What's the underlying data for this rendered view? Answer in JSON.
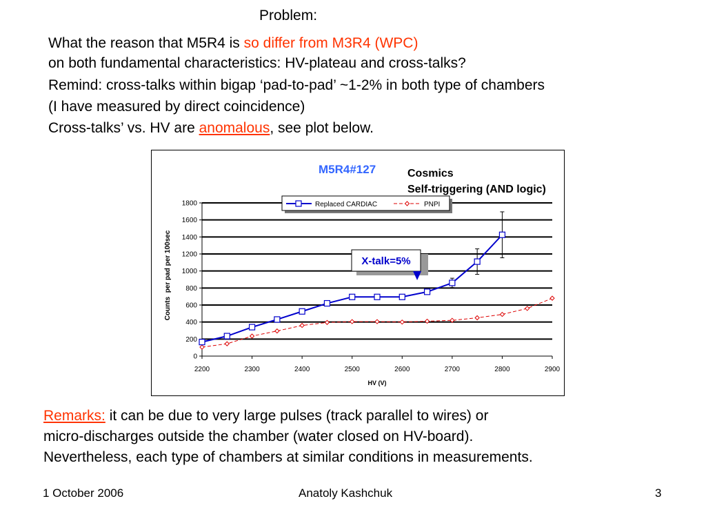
{
  "slide": {
    "problem": "Problem:",
    "line1_a": "What the reason that M5R4 is ",
    "line1_b": "so differ from M3R4 (WPC)",
    "line2": "on both fundamental characteristics: HV-plateau and cross-talks?",
    "line3": "Remind: cross-talks within bigap ‘pad-to-pad’ ~1-2% in both type of chambers",
    "line4": "(I have measured by direct coincidence)",
    "line5_a": "Cross-talks’ vs. HV are ",
    "line5_b": "anomalous",
    "line5_c": ", see plot below.",
    "remarks_label": "Remarks:",
    "remarks_1": " it can be due to very large pulses (track parallel to wires) or",
    "remarks_2": "micro-discharges outside the chamber (water closed on HV-board).",
    "remarks_3": "Nevertheless, each type of chambers at similar conditions in measurements.",
    "footer_date": "1 October 2006",
    "footer_author": "Anatoly Kashchuk",
    "footer_page": "3",
    "colors": {
      "red_text": "#ff3300",
      "title_blue": "#3366ff",
      "series_blue": "#0000cc",
      "series_red": "#dd0000"
    }
  },
  "chart_data": {
    "type": "line",
    "title": "M5R4#127",
    "subtitle_lines": [
      "Cosmics",
      "Self-triggering (AND logic)"
    ],
    "xlabel": "HV (V)",
    "ylabel": "Counts  per pad per 100sec",
    "xlim": [
      2200,
      2900
    ],
    "ylim": [
      0,
      1800
    ],
    "x_ticks": [
      2200,
      2300,
      2400,
      2500,
      2600,
      2700,
      2800,
      2900
    ],
    "y_ticks": [
      0,
      200,
      400,
      600,
      800,
      1000,
      1200,
      1400,
      1600,
      1800
    ],
    "grid": "horizontal",
    "legend_position": "top",
    "annotation": "X-talk=5%",
    "annotation_x": 2630,
    "series": [
      {
        "name": "Replaced CARDIAC",
        "style": "solid-square",
        "x": [
          2200,
          2250,
          2300,
          2350,
          2400,
          2450,
          2500,
          2550,
          2600,
          2650,
          2700,
          2750,
          2800
        ],
        "y": [
          165,
          235,
          340,
          430,
          525,
          620,
          695,
          695,
          695,
          755,
          860,
          1110,
          1425
        ],
        "err": [
          0,
          0,
          0,
          0,
          0,
          0,
          0,
          0,
          0,
          30,
          55,
          150,
          270
        ]
      },
      {
        "name": "PNPI",
        "style": "dashed-diamond",
        "x": [
          2200,
          2250,
          2300,
          2350,
          2400,
          2450,
          2500,
          2550,
          2600,
          2650,
          2700,
          2750,
          2800,
          2850,
          2900
        ],
        "y": [
          105,
          145,
          235,
          295,
          360,
          395,
          405,
          405,
          400,
          410,
          420,
          450,
          490,
          560,
          680
        ]
      }
    ]
  }
}
